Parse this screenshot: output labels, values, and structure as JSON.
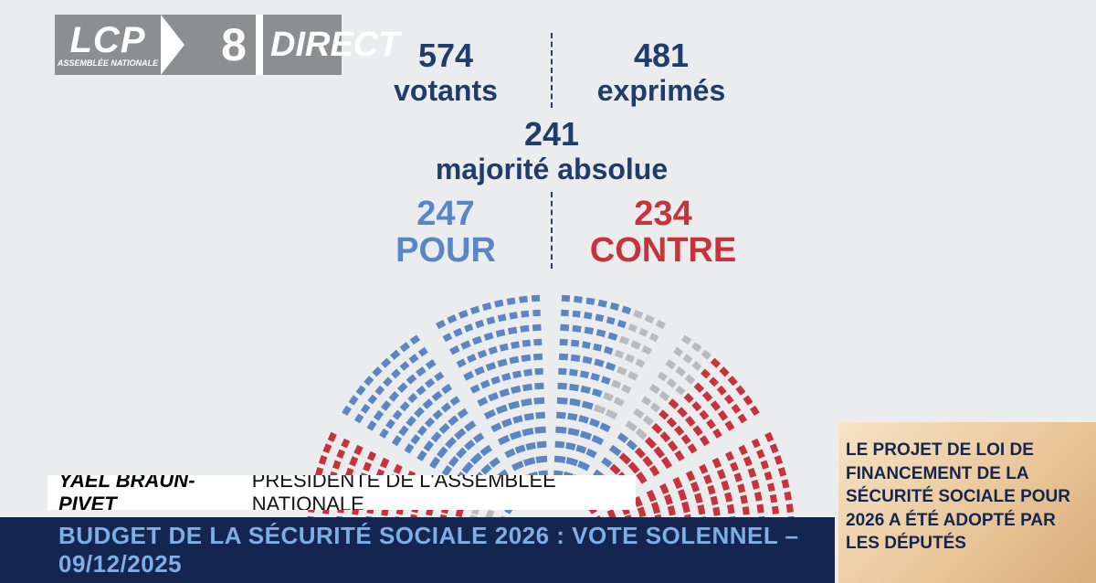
{
  "logo": {
    "brand": "LCP",
    "brand_sub": "ASSEMBLÉE NATIONALE",
    "channel_number": "8",
    "live_label": "DIRECT"
  },
  "vote_stats": {
    "votants": {
      "value": "574",
      "label": "votants"
    },
    "exprimes": {
      "value": "481",
      "label": "exprimés"
    },
    "majorite": {
      "value": "241",
      "label": "majorité absolue"
    },
    "pour": {
      "value": "247",
      "label": "POUR"
    },
    "contre": {
      "value": "234",
      "label": "CONTRE"
    }
  },
  "chart_data": {
    "type": "hemicycle",
    "categories": [
      "POUR",
      "CONTRE"
    ],
    "values": [
      247,
      234
    ],
    "colors": {
      "pour": "#5b86c6",
      "contre": "#c8323c",
      "other": "#b8bcc1"
    }
  },
  "lower_third": {
    "name": "YAËL BRAUN-PIVET",
    "role": "PRÉSIDENTE DE L'ASSEMBLÉE NATIONALE"
  },
  "ticker": {
    "title": "BUDGET DE LA SÉCURITÉ SOCIALE 2026 : VOTE SOLENNEL – 09/12/2025"
  },
  "side_panel": {
    "text": "LE PROJET DE LOI DE FINANCEMENT DE LA SÉCURITÉ SOCIALE POUR 2026 A ÉTÉ ADOPTÉ PAR LES DÉPUTÉS"
  }
}
